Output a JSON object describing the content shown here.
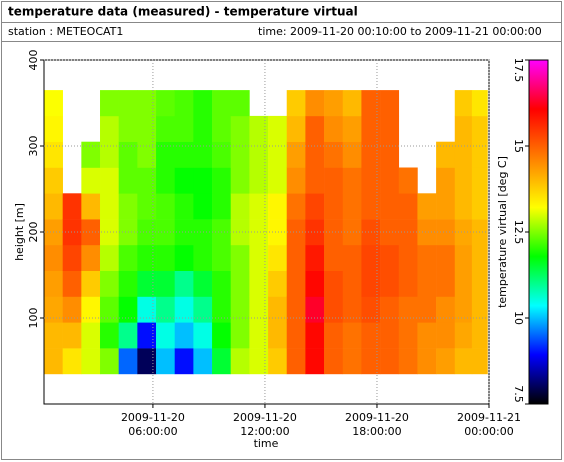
{
  "header": {
    "station": "station : METEOCAT1",
    "time": "time: 2009-11-20 00:10:00 to 2009-11-21 00:00:00"
  },
  "chart_data": {
    "type": "heatmap",
    "title": "temperature data (measured) - temperature virtual",
    "x_label": "time",
    "y_label": "height [m]",
    "colorbar_label": "temperature virtual [deg C]",
    "xlim": [
      "2009-11-20T00:10:00",
      "2009-11-21T00:00:00"
    ],
    "xticks": [
      {
        "value": "2009-11-20T06:00:00",
        "label": [
          "2009-11-20",
          "06:00:00"
        ]
      },
      {
        "value": "2009-11-20T12:00:00",
        "label": [
          "2009-11-20",
          "12:00:00"
        ]
      },
      {
        "value": "2009-11-20T18:00:00",
        "label": [
          "2009-11-20",
          "18:00:00"
        ]
      },
      {
        "value": "2009-11-21T00:00:00",
        "label": [
          "2009-11-21",
          "00:00:00"
        ]
      }
    ],
    "ylim": [
      0,
      400
    ],
    "yticks": [
      100,
      200,
      300,
      400
    ],
    "zlim": [
      7.5,
      17.5
    ],
    "zticks": [
      7.5,
      10,
      12.5,
      15,
      17.5
    ],
    "colors": [
      "#000000",
      "#0000ff",
      "#00ffff",
      "#00ff00",
      "#ffff00",
      "#ff8000",
      "#ff0000",
      "#ff00ff"
    ],
    "grid": true,
    "x": [
      "2009-11-20T00:40:00",
      "2009-11-20T01:40:00",
      "2009-11-20T02:40:00",
      "2009-11-20T03:40:00",
      "2009-11-20T04:40:00",
      "2009-11-20T05:40:00",
      "2009-11-20T06:40:00",
      "2009-11-20T07:40:00",
      "2009-11-20T08:40:00",
      "2009-11-20T09:40:00",
      "2009-11-20T10:40:00",
      "2009-11-20T11:40:00",
      "2009-11-20T12:40:00",
      "2009-11-20T13:40:00",
      "2009-11-20T14:40:00",
      "2009-11-20T15:40:00",
      "2009-11-20T16:40:00",
      "2009-11-20T17:40:00",
      "2009-11-20T18:40:00",
      "2009-11-20T19:40:00",
      "2009-11-20T20:40:00",
      "2009-11-20T21:40:00",
      "2009-11-20T22:40:00",
      "2009-11-20T23:30:00"
    ],
    "y": [
      50,
      80,
      110,
      140,
      170,
      200,
      230,
      260,
      290,
      320,
      350
    ],
    "z": [
      [
        14,
        14,
        14.2,
        14.3,
        14.5,
        14.3,
        14,
        13.8,
        13.5,
        13.3,
        13.2
      ],
      [
        13.5,
        14,
        14.5,
        15,
        15.3,
        15.5,
        15.5,
        null,
        null,
        null,
        null
      ],
      [
        13,
        13,
        13.3,
        13.8,
        14.5,
        15,
        14,
        13,
        12.5,
        null,
        null
      ],
      [
        12.5,
        12,
        12.3,
        12.5,
        12.8,
        13,
        13,
        13,
        12.8,
        12.8,
        12.5
      ],
      [
        9.5,
        11,
        11.8,
        12,
        12.2,
        12.5,
        12.5,
        12.3,
        12.3,
        12.5,
        12.5
      ],
      [
        8,
        9,
        10.5,
        11.5,
        12,
        12.2,
        12.3,
        12.3,
        12.5,
        12.5,
        12.5
      ],
      [
        10,
        10.5,
        11,
        11.5,
        12,
        12.2,
        12.2,
        12,
        12,
        12.2,
        12.3
      ],
      [
        9,
        10,
        10.5,
        11,
        11.8,
        12,
        12,
        11.8,
        12,
        12.2,
        12.2
      ],
      [
        10,
        10.5,
        11,
        11.5,
        12,
        12,
        11.8,
        11.8,
        12,
        12,
        12
      ],
      [
        11.5,
        11.8,
        12,
        12,
        12.2,
        12.2,
        12,
        12,
        12.2,
        12.3,
        12.3
      ],
      [
        12.8,
        12.5,
        12.5,
        12.5,
        12.5,
        12.8,
        12.8,
        12.5,
        12.5,
        12.5,
        12.3
      ],
      [
        13,
        13,
        13,
        13,
        13,
        13,
        13,
        12.8,
        12.8,
        12.8,
        null
      ],
      [
        13.8,
        14,
        14,
        13.8,
        13.5,
        13.3,
        13.3,
        13,
        13,
        13,
        null
      ],
      [
        15,
        15,
        15,
        15,
        15,
        15,
        14.8,
        14.5,
        14.3,
        14,
        13.8
      ],
      [
        16,
        16,
        16.3,
        16,
        15.8,
        15.5,
        15.3,
        15,
        15,
        15,
        14.5
      ],
      [
        15,
        15,
        15.2,
        15.2,
        15,
        15,
        15,
        15,
        14.8,
        14.5,
        14.3
      ],
      [
        14.8,
        14.8,
        15,
        15,
        15,
        14.8,
        14.8,
        14.8,
        14.5,
        14.3,
        14
      ],
      [
        15,
        15,
        15.2,
        15.3,
        15.3,
        15.2,
        15,
        15,
        15,
        15,
        15
      ],
      [
        15,
        15,
        15,
        15.2,
        15.2,
        15,
        15,
        15,
        15,
        15,
        15
      ],
      [
        14.8,
        14.8,
        14.8,
        15,
        15,
        15,
        15,
        14.8,
        null,
        null,
        null
      ],
      [
        14.5,
        14.5,
        14.8,
        14.8,
        14.8,
        14.5,
        14.3,
        null,
        null,
        null,
        null
      ],
      [
        14.3,
        14.5,
        14.5,
        14.8,
        14.8,
        14.5,
        14.3,
        14.3,
        14,
        null,
        null
      ],
      [
        14,
        14.2,
        14.3,
        14.3,
        14.3,
        14.2,
        14,
        14,
        14,
        14,
        13.8
      ],
      [
        14,
        14,
        14,
        14,
        14,
        14,
        13.8,
        13.8,
        13.8,
        13.8,
        13.5
      ]
    ]
  }
}
